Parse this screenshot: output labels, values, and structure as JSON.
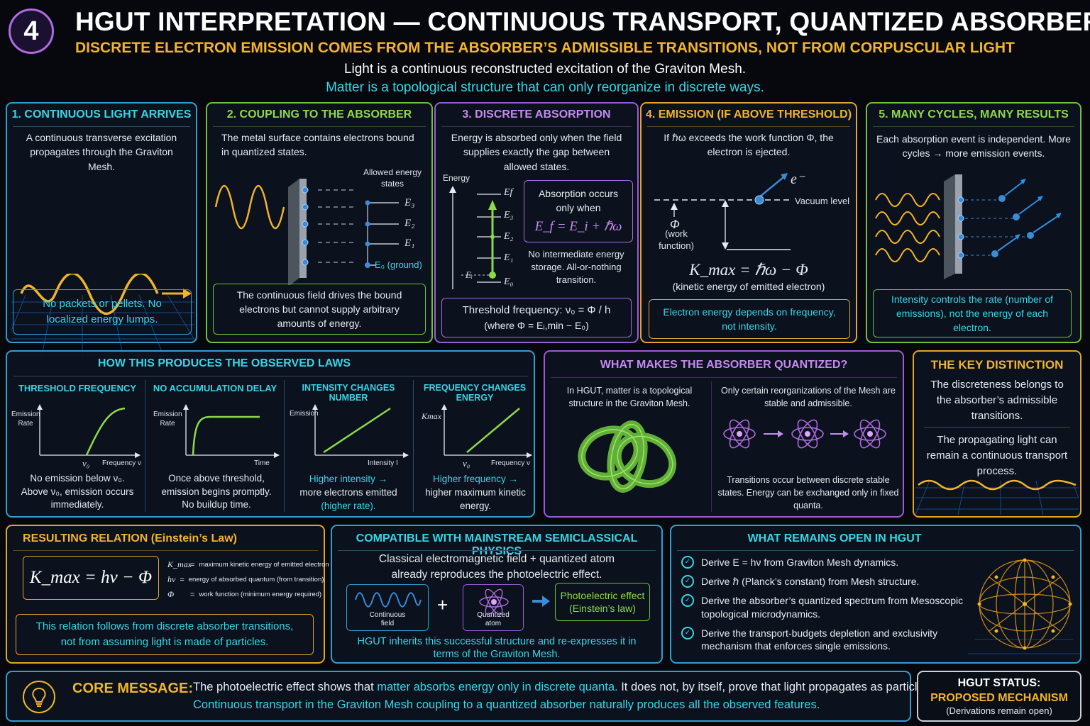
{
  "header": {
    "number": "4",
    "title": "HGUT INTERPRETATION — CONTINUOUS TRANSPORT, QUANTIZED ABSORBER",
    "subtitle": "DISCRETE ELECTRON EMISSION COMES FROM THE ABSORBER’S ADMISSIBLE TRANSITIONS, NOT FROM CORPUSCULAR LIGHT",
    "line1": "Light is a continuous reconstructed excitation of the Graviton Mesh.",
    "line2": "Matter is a topological structure that can only reorganize in discrete ways."
  },
  "colors": {
    "cyan": "#34d6e6",
    "gold": "#f2b42a",
    "green": "#8ed94a",
    "purple": "#b06be0",
    "blue": "#3a8bd8"
  },
  "steps": [
    {
      "title": "1. CONTINUOUS LIGHT ARRIVES",
      "text": "A continuous transverse excitation propagates through the Graviton Mesh.",
      "box": "No packets or pellets. No localized energy lumps."
    },
    {
      "title": "2. COUPLING TO THE ABSORBER",
      "text": "The metal surface contains electrons bound in quantized states.",
      "allowed": "Allowed energy states",
      "levels": [
        "E₃",
        "E₂",
        "E₁",
        "E₀ (ground)"
      ],
      "box": "The continuous field drives the bound electrons but cannot supply arbitrary amounts of energy."
    },
    {
      "title": "3. DISCRETE ABSORPTION",
      "text": "Energy is absorbed only when the field supplies exactly the gap between allowed states.",
      "axis": "Energy",
      "levels": [
        "Ef",
        "E₃",
        "E₂",
        "E₁",
        "E₀"
      ],
      "ei": "Eᵢ",
      "occurs": "Absorption occurs only when",
      "eq": "E_f = E_i + ℏω",
      "note": "No intermediate energy storage. All-or-nothing transition.",
      "threshold": "Threshold frequency: ν₀ = Φ / h",
      "where": "(where Φ = Eᵢ,min − E₀)"
    },
    {
      "title": "4. EMISSION (IF ABOVE THRESHOLD)",
      "text": "If ℏω exceeds the work function Φ, the electron is ejected.",
      "electron": "e⁻",
      "vacuum": "Vacuum level",
      "phi": "Φ",
      "phi_note": "(work function)",
      "eq": "K_max = ℏω − Φ",
      "eq_note": "(kinetic energy of emitted electron)",
      "box": "Electron energy depends on frequency, not intensity."
    },
    {
      "title": "5. MANY CYCLES, MANY RESULTS",
      "text": "Each absorption event is independent. More cycles → more emission events.",
      "box": "Intensity controls the rate (number of emissions), not the energy of each electron."
    }
  ],
  "laws": {
    "title": "HOW THIS PRODUCES THE OBSERVED LAWS",
    "items": [
      {
        "title": "THRESHOLD FREQUENCY",
        "ylabel": "Emission Rate",
        "xlabel": "Frequency ν",
        "mark": "ν₀",
        "text": "No emission below ν₀. Above ν₀, emission occurs immediately."
      },
      {
        "title": "NO ACCUMULATION DELAY",
        "ylabel": "Emission Rate",
        "xlabel": "Time",
        "mark": "",
        "text": "Once above threshold, emission begins promptly. No buildup time."
      },
      {
        "title": "INTENSITY CHANGES NUMBER",
        "ylabel": "Emission",
        "xlabel": "Intensity I",
        "mark": "",
        "text_a": "Higher intensity →",
        "text_b": "more electrons emitted",
        "text_c": "(higher rate)."
      },
      {
        "title": "FREQUENCY CHANGES ENERGY",
        "ylabel": "Kmax",
        "xlabel": "Frequency ν",
        "mark": "ν₀",
        "text_a": "Higher frequency →",
        "text_b": "higher maximum kinetic",
        "text_c": "energy."
      }
    ]
  },
  "quantized": {
    "title": "WHAT MAKES THE ABSORBER QUANTIZED?",
    "left": "In HGUT, matter is a topological structure in the Graviton Mesh.",
    "right": "Only certain reorganizations of the Mesh are stable and admissible.",
    "bottom": "Transitions occur between discrete stable states. Energy can be exchanged only in fixed quanta."
  },
  "key": {
    "title": "THE KEY DISTINCTION",
    "a": "The discreteness belongs to the absorber’s admissible transitions.",
    "b": "The propagating light can remain a continuous transport process."
  },
  "relation": {
    "title": "RESULTING RELATION (Einstein’s Law)",
    "eq": "K_max = hν − Φ",
    "legend": [
      {
        "sym": "K_max",
        "desc": "maximum kinetic energy of emitted electron"
      },
      {
        "sym": "hν",
        "desc": "energy of absorbed quantum (from transition)"
      },
      {
        "sym": "Φ",
        "desc": "work function (minimum energy required)"
      }
    ],
    "box": "This relation follows from discrete absorber transitions, not from assuming light is made of particles."
  },
  "compat": {
    "title": "COMPATIBLE WITH MAINSTREAM SEMICLASSICAL PHYSICS",
    "text": "Classical electromagnetic field + quantized atom already reproduces the photoelectric effect.",
    "field": "Continuous field",
    "atom": "Quantized atom",
    "result": "Photoelectric effect (Einstein’s law)",
    "bottom": "HGUT inherits this successful structure and re-expresses it in terms of the Graviton Mesh."
  },
  "open": {
    "title": "WHAT REMAINS OPEN IN HGUT",
    "items": [
      "Derive E = hν from Graviton Mesh dynamics.",
      "Derive ℏ (Planck’s constant) from Mesh structure.",
      "Derive the absorber’s quantized spectrum from Mesoscopic topological microdynamics.",
      "Derive the transport-budgets depletion and exclusivity mechanism that enforces single emissions."
    ]
  },
  "core": {
    "label": "CORE MESSAGE:",
    "t1": "The photoelectric effect shows that",
    "t2": "matter absorbs energy only in discrete quanta.",
    "t3": "It does not, by itself, prove that light propagates as particles.",
    "t4": "Continuous transport in the Graviton Mesh coupling to a quantized absorber naturally produces all the observed features."
  },
  "status": {
    "a": "HGUT STATUS:",
    "b": "PROPOSED MECHANISM",
    "c": "(Derivations remain open)"
  }
}
